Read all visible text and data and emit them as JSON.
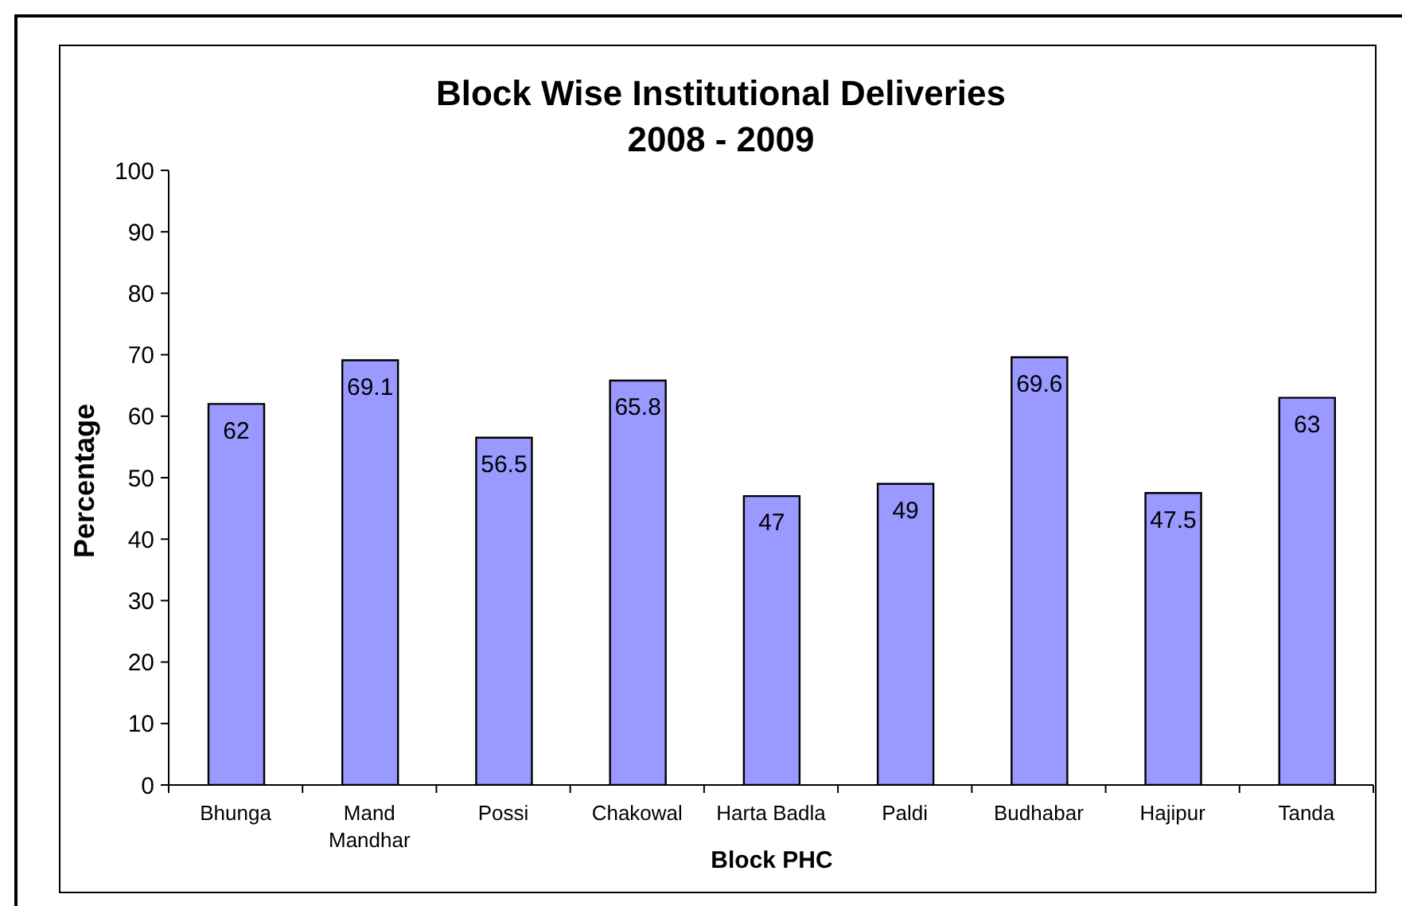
{
  "chart_data": {
    "type": "bar",
    "title": "Block Wise Institutional Deliveries",
    "subtitle": "2008 - 2009",
    "xlabel": "Block PHC",
    "ylabel": "Percentage",
    "categories": [
      "Bhunga",
      "Mand Mandhar",
      "Possi",
      "Chakowal",
      "Harta Badla",
      "Paldi",
      "Budhabar",
      "Hajipur",
      "Tanda"
    ],
    "values": [
      62,
      69.1,
      56.5,
      65.8,
      47,
      49,
      69.6,
      47.5,
      63
    ],
    "color": "#9999ff",
    "ylim": [
      0,
      100
    ],
    "yticks": [
      0,
      10,
      20,
      30,
      40,
      50,
      60,
      70,
      80,
      90,
      100
    ],
    "data_labels": true
  }
}
